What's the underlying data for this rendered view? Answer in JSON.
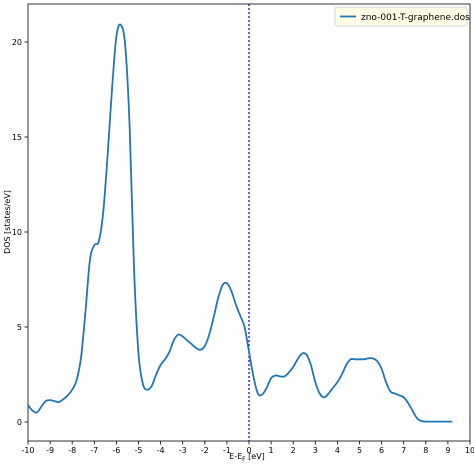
{
  "chart_data": {
    "type": "line",
    "title": "",
    "xlabel": "E-E",
    "xlabel_sub": "F",
    "xlabel_unit": " [eV]",
    "ylabel": "DOS [states/eV]",
    "xlim": [
      -10,
      10
    ],
    "ylim": [
      -1,
      22
    ],
    "x_ticks": [
      -10,
      -9,
      -8,
      -7,
      -6,
      -5,
      -4,
      -3,
      -2,
      -1,
      0,
      1,
      2,
      3,
      4,
      5,
      6,
      7,
      8,
      9,
      10
    ],
    "x_tick_labels": [
      "-10",
      "-9",
      "-8",
      "-7",
      "-6",
      "-5",
      "-4",
      "-3",
      "-2",
      "-1",
      "0",
      "1",
      "2",
      "3",
      "4",
      "5",
      "6",
      "7",
      "8",
      "9",
      "10"
    ],
    "y_ticks": [
      0,
      5,
      10,
      15,
      20
    ],
    "y_tick_labels": [
      "0",
      "5",
      "10",
      "15",
      "20"
    ],
    "fermi_level": 0,
    "legend_position": "top-right",
    "colors": {
      "series": "#1f77b4",
      "fermi": "#0000cc",
      "legend_bg": "#fffde6"
    },
    "series": [
      {
        "name": "zno-001-T-graphene.dos",
        "x": [
          -10,
          -9.8,
          -9.6,
          -9.4,
          -9.2,
          -9.0,
          -8.8,
          -8.6,
          -8.4,
          -8.2,
          -8.0,
          -7.8,
          -7.6,
          -7.4,
          -7.2,
          -7.0,
          -6.8,
          -6.6,
          -6.4,
          -6.2,
          -6.0,
          -5.8,
          -5.6,
          -5.4,
          -5.2,
          -5.0,
          -4.8,
          -4.6,
          -4.4,
          -4.2,
          -4.0,
          -3.8,
          -3.6,
          -3.4,
          -3.2,
          -3.0,
          -2.8,
          -2.6,
          -2.4,
          -2.2,
          -2.0,
          -1.8,
          -1.6,
          -1.4,
          -1.2,
          -1.0,
          -0.8,
          -0.6,
          -0.4,
          -0.2,
          0.0,
          0.2,
          0.4,
          0.6,
          0.8,
          1.0,
          1.2,
          1.4,
          1.6,
          1.8,
          2.0,
          2.2,
          2.4,
          2.6,
          2.8,
          3.0,
          3.2,
          3.4,
          3.6,
          3.8,
          4.0,
          4.2,
          4.4,
          4.6,
          4.8,
          5.0,
          5.2,
          5.4,
          5.6,
          5.8,
          6.0,
          6.2,
          6.4,
          6.6,
          6.8,
          7.0,
          7.2,
          7.4,
          7.6,
          7.8,
          8.0,
          8.2,
          8.4,
          8.6,
          8.8,
          9.0,
          9.2
        ],
        "y": [
          0.9,
          0.6,
          0.5,
          0.8,
          1.1,
          1.15,
          1.1,
          1.05,
          1.2,
          1.4,
          1.7,
          2.2,
          3.4,
          5.8,
          8.5,
          9.3,
          9.5,
          11.0,
          14.0,
          17.5,
          20.3,
          20.9,
          19.8,
          15.5,
          8.0,
          3.6,
          2.0,
          1.7,
          1.9,
          2.5,
          3.0,
          3.3,
          3.7,
          4.3,
          4.6,
          4.5,
          4.3,
          4.1,
          3.9,
          3.8,
          4.0,
          4.6,
          5.5,
          6.5,
          7.2,
          7.3,
          6.9,
          6.2,
          5.6,
          5.0,
          3.7,
          2.4,
          1.5,
          1.45,
          1.8,
          2.3,
          2.45,
          2.4,
          2.4,
          2.6,
          2.9,
          3.3,
          3.6,
          3.55,
          3.0,
          2.1,
          1.5,
          1.3,
          1.5,
          1.8,
          2.1,
          2.5,
          3.0,
          3.3,
          3.3,
          3.3,
          3.3,
          3.35,
          3.35,
          3.2,
          2.8,
          2.1,
          1.6,
          1.5,
          1.4,
          1.3,
          1.0,
          0.6,
          0.2,
          0.05,
          0.02,
          0.02,
          0.02,
          0.02,
          0.02,
          0.02,
          0.02
        ]
      }
    ]
  }
}
